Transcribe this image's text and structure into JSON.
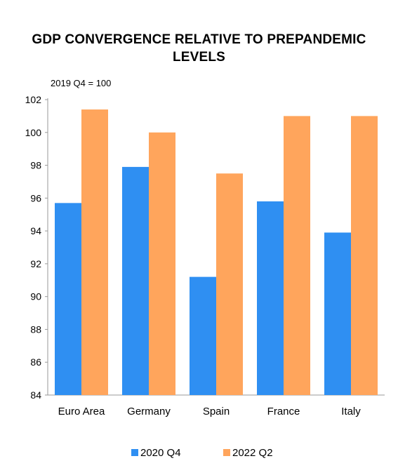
{
  "chart_data": {
    "type": "bar",
    "title": "GDP CONVERGENCE RELATIVE TO PREPANDEMIC LEVELS",
    "note": "2019 Q4 = 100",
    "categories": [
      "Euro Area",
      "Germany",
      "Spain",
      "France",
      "Italy"
    ],
    "series": [
      {
        "name": "2020 Q4",
        "color": "#2f8ff2",
        "values": [
          95.7,
          97.9,
          91.2,
          95.8,
          93.9
        ]
      },
      {
        "name": "2022 Q2",
        "color": "#ffa55c",
        "values": [
          101.4,
          100.0,
          97.5,
          101.0,
          101.0
        ]
      }
    ],
    "ylim": [
      84,
      102
    ],
    "yticks": [
      "84",
      "86",
      "88",
      "90",
      "92",
      "94",
      "96",
      "98",
      "100",
      "102"
    ],
    "legend_position": "bottom",
    "grid": false
  }
}
